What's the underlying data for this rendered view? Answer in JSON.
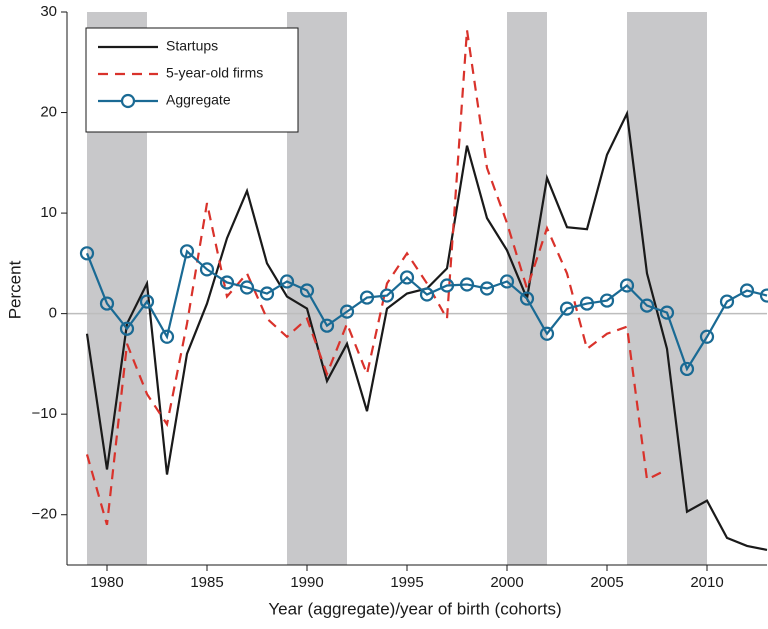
{
  "chart_data": {
    "type": "line",
    "xlabel": "Year (aggregate)/year of birth (cohorts)",
    "ylabel": "Percent",
    "x": [
      1979,
      1980,
      1981,
      1982,
      1983,
      1984,
      1985,
      1986,
      1987,
      1988,
      1989,
      1990,
      1991,
      1992,
      1993,
      1994,
      1995,
      1996,
      1997,
      1998,
      1999,
      2000,
      2001,
      2002,
      2003,
      2004,
      2005,
      2006,
      2007,
      2008,
      2009,
      2010,
      2011,
      2012,
      2013
    ],
    "series": [
      {
        "name": "Startups",
        "color": "#1a1a1a",
        "dash": "solid",
        "marker": "none",
        "values": [
          -2,
          -15.5,
          -1,
          3,
          -16,
          -4,
          1,
          7.5,
          12.2,
          5,
          1.7,
          0.5,
          -6.7,
          -3,
          -9.7,
          0.5,
          2,
          2.5,
          4.5,
          16.7,
          9.5,
          6.3,
          1.5,
          13.5,
          8.6,
          8.4,
          15.8,
          19.9,
          4,
          -3.5,
          -19.7,
          -18.6,
          -22.3,
          -23.1,
          -23.5
        ]
      },
      {
        "name": "5-year-old firms",
        "color": "#d9322b",
        "dash": "dashed",
        "marker": "none",
        "values": [
          -14,
          -21,
          -3,
          -8,
          -11,
          -1,
          11,
          1.7,
          4,
          -0.5,
          -2.3,
          -0.5,
          -6,
          -1,
          -6,
          3,
          6,
          3,
          -0.5,
          28.2,
          14.5,
          9,
          2.5,
          8.5,
          4,
          -3.5,
          -2,
          -1.3,
          -16.5,
          -15.5,
          null,
          null,
          null,
          null,
          null
        ]
      },
      {
        "name": "Aggregate",
        "color": "#1a6a94",
        "dash": "solid",
        "marker": "circle",
        "values": [
          6,
          1,
          -1.5,
          1.2,
          -2.3,
          6.2,
          4.4,
          3.1,
          2.6,
          2,
          3.2,
          2.3,
          -1.2,
          0.2,
          1.6,
          1.8,
          3.6,
          1.9,
          2.8,
          2.9,
          2.5,
          3.2,
          1.5,
          -2,
          0.5,
          1,
          1.3,
          2.8,
          0.8,
          0.1,
          -5.5,
          -2.3,
          1.2,
          2.3,
          1.8
        ]
      }
    ],
    "shaded_periods": [
      [
        1979,
        1982
      ],
      [
        1989,
        1992
      ],
      [
        2000,
        2002
      ],
      [
        2006,
        2010
      ]
    ],
    "shade_color": "#c8c8ca",
    "xlim": [
      1978,
      2013
    ],
    "ylim": [
      -25,
      30
    ],
    "xticks": [
      1980,
      1985,
      1990,
      1995,
      2000,
      2005,
      2010
    ],
    "yticks": [
      30,
      20,
      10,
      0,
      {
        "value": -10,
        "label": "−10"
      },
      {
        "value": -20,
        "label": "−20"
      }
    ],
    "legend": "upper left"
  }
}
